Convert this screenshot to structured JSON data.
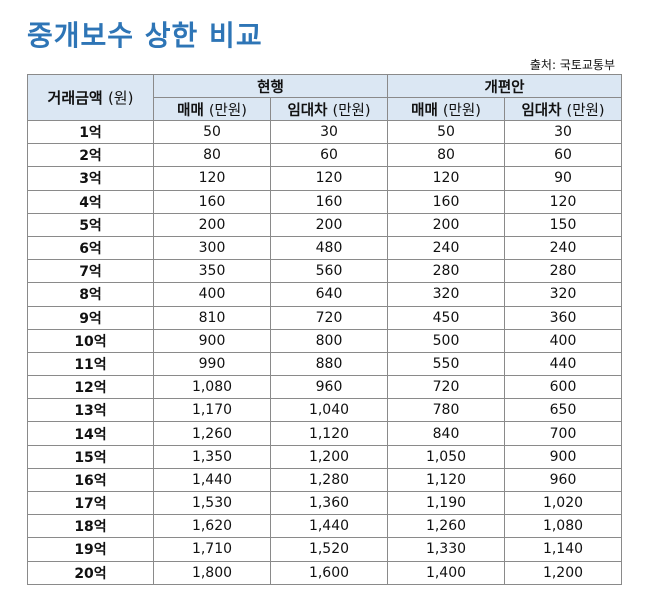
{
  "title": "중개보수 상한 비교",
  "source": "출처: 국토교통부",
  "chart_data": {
    "type": "table",
    "title": "중개보수 상한 비교",
    "header": {
      "amount": "거래금액",
      "amount_unit": "(원)",
      "group_current": "현행",
      "group_revised": "개편안",
      "sale": "매매",
      "lease": "임대차",
      "unit": "(만원)"
    },
    "columns": [
      "거래금액 (원)",
      "현행 매매 (만원)",
      "현행 임대차 (만원)",
      "개편안 매매 (만원)",
      "개편안 임대차 (만원)"
    ],
    "rows": [
      {
        "amount": "1억",
        "cur_sale": "50",
        "cur_lease": "30",
        "new_sale": "50",
        "new_lease": "30"
      },
      {
        "amount": "2억",
        "cur_sale": "80",
        "cur_lease": "60",
        "new_sale": "80",
        "new_lease": "60"
      },
      {
        "amount": "3억",
        "cur_sale": "120",
        "cur_lease": "120",
        "new_sale": "120",
        "new_lease": "90"
      },
      {
        "amount": "4억",
        "cur_sale": "160",
        "cur_lease": "160",
        "new_sale": "160",
        "new_lease": "120"
      },
      {
        "amount": "5억",
        "cur_sale": "200",
        "cur_lease": "200",
        "new_sale": "200",
        "new_lease": "150"
      },
      {
        "amount": "6억",
        "cur_sale": "300",
        "cur_lease": "480",
        "new_sale": "240",
        "new_lease": "240"
      },
      {
        "amount": "7억",
        "cur_sale": "350",
        "cur_lease": "560",
        "new_sale": "280",
        "new_lease": "280"
      },
      {
        "amount": "8억",
        "cur_sale": "400",
        "cur_lease": "640",
        "new_sale": "320",
        "new_lease": "320"
      },
      {
        "amount": "9억",
        "cur_sale": "810",
        "cur_lease": "720",
        "new_sale": "450",
        "new_lease": "360"
      },
      {
        "amount": "10억",
        "cur_sale": "900",
        "cur_lease": "800",
        "new_sale": "500",
        "new_lease": "400"
      },
      {
        "amount": "11억",
        "cur_sale": "990",
        "cur_lease": "880",
        "new_sale": "550",
        "new_lease": "440"
      },
      {
        "amount": "12억",
        "cur_sale": "1,080",
        "cur_lease": "960",
        "new_sale": "720",
        "new_lease": "600"
      },
      {
        "amount": "13억",
        "cur_sale": "1,170",
        "cur_lease": "1,040",
        "new_sale": "780",
        "new_lease": "650"
      },
      {
        "amount": "14억",
        "cur_sale": "1,260",
        "cur_lease": "1,120",
        "new_sale": "840",
        "new_lease": "700"
      },
      {
        "amount": "15억",
        "cur_sale": "1,350",
        "cur_lease": "1,200",
        "new_sale": "1,050",
        "new_lease": "900"
      },
      {
        "amount": "16억",
        "cur_sale": "1,440",
        "cur_lease": "1,280",
        "new_sale": "1,120",
        "new_lease": "960"
      },
      {
        "amount": "17억",
        "cur_sale": "1,530",
        "cur_lease": "1,360",
        "new_sale": "1,190",
        "new_lease": "1,020"
      },
      {
        "amount": "18억",
        "cur_sale": "1,620",
        "cur_lease": "1,440",
        "new_sale": "1,260",
        "new_lease": "1,080"
      },
      {
        "amount": "19억",
        "cur_sale": "1,710",
        "cur_lease": "1,520",
        "new_sale": "1,330",
        "new_lease": "1,140"
      },
      {
        "amount": "20억",
        "cur_sale": "1,800",
        "cur_lease": "1,600",
        "new_sale": "1,400",
        "new_lease": "1,200"
      }
    ]
  },
  "colors": {
    "title": "#2e75b6",
    "header_bg": "#dbe7f3",
    "border": "#8a8a8a"
  }
}
